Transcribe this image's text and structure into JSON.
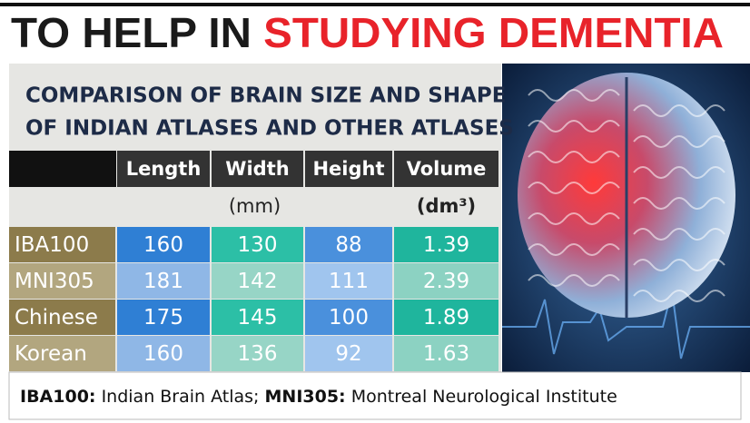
{
  "header": {
    "title_part1": "TO HELP IN",
    "title_part2": "STUDYING DEMENTIA"
  },
  "table": {
    "caption": [
      "COMPARISON OF BRAIN SIZE AND SHAPE",
      "OF INDIAN ATLASES AND OTHER ATLASES"
    ],
    "columns": [
      "Length",
      "Width",
      "Height",
      "Volume"
    ],
    "units": [
      "(mm)",
      "(dm³)"
    ],
    "rows": [
      [
        "IBA100",
        160,
        130,
        88,
        1.39
      ],
      [
        "MNI305",
        181,
        142,
        111,
        2.39
      ],
      [
        "Chinese",
        175,
        145,
        100,
        1.89
      ],
      [
        "Korean",
        160,
        136,
        92,
        1.63
      ]
    ]
  },
  "footnote": [
    {
      "term": "IBA100:",
      "definition": "Indian Brain Atlas;"
    },
    {
      "term": "MNI305:",
      "definition": "Montreal Neurological Institute"
    }
  ]
}
